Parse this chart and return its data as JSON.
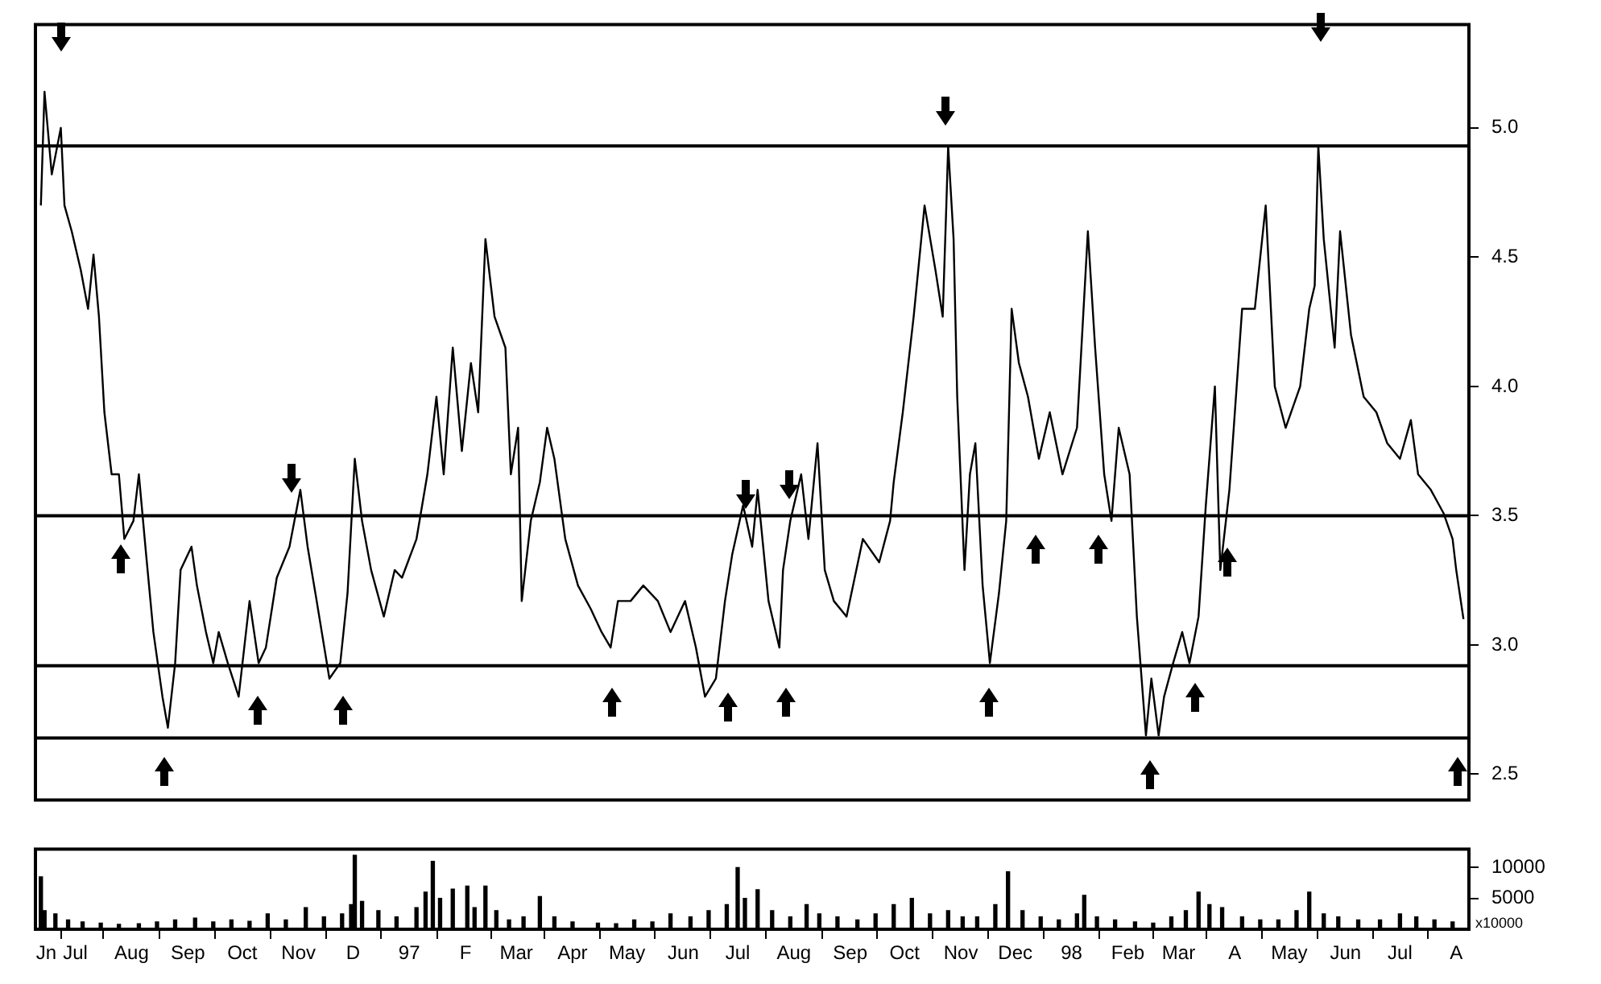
{
  "chart_data": [
    {
      "type": "line",
      "color": "#000000",
      "marker": "none",
      "grid": false,
      "legend": false,
      "tick_labels": "y",
      "x": [
        "1996-06-12",
        "1996-06-14",
        "1996-06-18",
        "1996-06-23",
        "1996-06-25",
        "1996-06-29",
        "1996-07-04",
        "1996-07-08",
        "1996-07-11",
        "1996-07-14",
        "1996-07-17",
        "1996-07-21",
        "1996-07-25",
        "1996-07-28",
        "1996-08-02",
        "1996-08-05",
        "1996-08-09",
        "1996-08-13",
        "1996-08-18",
        "1996-08-21",
        "1996-08-25",
        "1996-08-28",
        "1996-09-03",
        "1996-09-06",
        "1996-09-11",
        "1996-09-15",
        "1996-09-18",
        "1996-09-23",
        "1996-09-29",
        "1996-10-05",
        "1996-10-10",
        "1996-10-14",
        "1996-10-20",
        "1996-10-27",
        "1996-11-02",
        "1996-11-06",
        "1996-11-11",
        "1996-11-18",
        "1996-11-24",
        "1996-11-28",
        "1996-12-02",
        "1996-12-06",
        "1996-12-11",
        "1996-12-18",
        "1996-12-24",
        "1996-12-28",
        "1997-01-05",
        "1997-01-11",
        "1997-01-16",
        "1997-01-20",
        "1997-01-25",
        "1997-01-30",
        "1997-02-04",
        "1997-02-08",
        "1997-02-12",
        "1997-02-17",
        "1997-02-23",
        "1997-02-26",
        "1997-03-02",
        "1997-03-04",
        "1997-03-09",
        "1997-03-14",
        "1997-03-18",
        "1997-03-22",
        "1997-03-28",
        "1997-04-04",
        "1997-04-11",
        "1997-04-17",
        "1997-04-22",
        "1997-04-26",
        "1997-05-03",
        "1997-05-10",
        "1997-05-18",
        "1997-05-25",
        "1997-06-02",
        "1997-06-08",
        "1997-06-13",
        "1997-06-19",
        "1997-06-24",
        "1997-06-28",
        "1997-07-04",
        "1997-07-09",
        "1997-07-12",
        "1997-07-18",
        "1997-07-24",
        "1997-07-26",
        "1997-07-30",
        "1997-08-05",
        "1997-08-09",
        "1997-08-14",
        "1997-08-18",
        "1997-08-23",
        "1997-08-30",
        "1997-09-08",
        "1997-09-17",
        "1997-09-23",
        "1997-09-25",
        "1997-09-30",
        "1997-10-06",
        "1997-10-12",
        "1997-10-18",
        "1997-10-22",
        "1997-10-24",
        "1997-10-25",
        "1997-10-28",
        "1997-10-30",
        "1997-11-03",
        "1997-11-06",
        "1997-11-09",
        "1997-11-13",
        "1997-11-17",
        "1997-11-22",
        "1997-11-26",
        "1997-11-29",
        "1997-12-03",
        "1997-12-08",
        "1997-12-14",
        "1997-12-20",
        "1997-12-27",
        "1998-01-04",
        "1998-01-10",
        "1998-01-14",
        "1998-01-19",
        "1998-01-23",
        "1998-01-27",
        "1998-02-02",
        "1998-02-06",
        "1998-02-11",
        "1998-02-14",
        "1998-02-18",
        "1998-02-21",
        "1998-02-26",
        "1998-03-03",
        "1998-03-07",
        "1998-03-12",
        "1998-03-16",
        "1998-03-21",
        "1998-03-24",
        "1998-03-29",
        "1998-04-05",
        "1998-04-12",
        "1998-04-18",
        "1998-04-23",
        "1998-04-29",
        "1998-05-07",
        "1998-05-12",
        "1998-05-15",
        "1998-05-17",
        "1998-05-20",
        "1998-05-26",
        "1998-05-29",
        "1998-06-04",
        "1998-06-11",
        "1998-06-18",
        "1998-06-24",
        "1998-07-01",
        "1998-07-07",
        "1998-07-11",
        "1998-07-18",
        "1998-07-25",
        "1998-07-30",
        "1998-08-01",
        "1998-08-05"
      ],
      "values": [
        4.7,
        5.14,
        4.82,
        5.0,
        4.7,
        4.6,
        4.45,
        4.3,
        4.51,
        4.27,
        3.9,
        3.66,
        3.66,
        3.41,
        3.48,
        3.66,
        3.35,
        3.05,
        2.8,
        2.68,
        2.93,
        3.29,
        3.38,
        3.23,
        3.05,
        2.93,
        3.05,
        2.93,
        2.8,
        3.17,
        2.93,
        2.99,
        3.26,
        3.38,
        3.6,
        3.38,
        3.17,
        2.87,
        2.93,
        3.2,
        3.72,
        3.48,
        3.29,
        3.11,
        3.29,
        3.26,
        3.41,
        3.66,
        3.96,
        3.66,
        4.15,
        3.75,
        4.09,
        3.9,
        4.57,
        4.27,
        4.15,
        3.66,
        3.84,
        3.17,
        3.48,
        3.63,
        3.84,
        3.72,
        3.41,
        3.23,
        3.14,
        3.05,
        2.99,
        3.17,
        3.17,
        3.23,
        3.17,
        3.05,
        3.17,
        2.99,
        2.8,
        2.87,
        3.17,
        3.35,
        3.54,
        3.38,
        3.6,
        3.17,
        2.99,
        3.29,
        3.48,
        3.66,
        3.41,
        3.78,
        3.29,
        3.17,
        3.11,
        3.41,
        3.32,
        3.48,
        3.63,
        3.9,
        4.27,
        4.7,
        4.45,
        4.27,
        4.7,
        4.93,
        4.57,
        3.96,
        3.29,
        3.66,
        3.78,
        3.23,
        2.93,
        3.2,
        3.48,
        4.3,
        4.09,
        3.96,
        3.72,
        3.9,
        3.66,
        3.84,
        4.6,
        4.15,
        3.66,
        3.48,
        3.84,
        3.66,
        3.11,
        2.65,
        2.87,
        2.65,
        2.8,
        2.93,
        3.05,
        2.93,
        3.11,
        3.54,
        4.0,
        3.29,
        3.6,
        4.3,
        4.3,
        4.7,
        4.0,
        3.84,
        4.0,
        4.3,
        4.39,
        4.93,
        4.57,
        4.15,
        4.6,
        4.2,
        3.96,
        3.9,
        3.78,
        3.72,
        3.87,
        3.66,
        3.6,
        3.51,
        3.41,
        3.29,
        3.1
      ],
      "xlim": [
        "1996-06-09",
        "1998-08-08"
      ],
      "ylim": [
        2.4,
        5.4
      ],
      "yticks": [
        2.5,
        {
          "value": 3,
          "label": "3.0"
        },
        3.5,
        {
          "value": 4,
          "label": "4.0"
        },
        4.5,
        {
          "value": 5,
          "label": "5.0"
        }
      ],
      "ref_lines": [
        {
          "axis": "y",
          "value": 4.93,
          "color": "#000000"
        },
        {
          "axis": "y",
          "value": 3.5,
          "color": "#000000"
        },
        {
          "axis": "y",
          "value": 2.92,
          "color": "#000000"
        },
        {
          "axis": "y",
          "value": 2.64,
          "color": "#000000"
        }
      ]
    },
    {
      "type": "bar",
      "color": "#000000",
      "grid": false,
      "legend": false,
      "x": [
        "1996-06-12",
        "1996-06-14",
        "1996-06-20",
        "1996-06-27",
        "1996-07-05",
        "1996-07-15",
        "1996-07-25",
        "1996-08-05",
        "1996-08-15",
        "1996-08-25",
        "1996-09-05",
        "1996-09-15",
        "1996-09-25",
        "1996-10-05",
        "1996-10-15",
        "1996-10-25",
        "1996-11-05",
        "1996-11-15",
        "1996-11-25",
        "1996-11-30",
        "1996-12-02",
        "1996-12-06",
        "1996-12-15",
        "1996-12-25",
        "1997-01-05",
        "1997-01-10",
        "1997-01-14",
        "1997-01-18",
        "1997-01-25",
        "1997-02-02",
        "1997-02-06",
        "1997-02-12",
        "1997-02-18",
        "1997-02-25",
        "1997-03-05",
        "1997-03-14",
        "1997-03-22",
        "1997-04-01",
        "1997-04-15",
        "1997-04-25",
        "1997-05-05",
        "1997-05-15",
        "1997-05-25",
        "1997-06-05",
        "1997-06-15",
        "1997-06-25",
        "1997-07-01",
        "1997-07-05",
        "1997-07-12",
        "1997-07-20",
        "1997-07-30",
        "1997-08-08",
        "1997-08-15",
        "1997-08-25",
        "1997-09-05",
        "1997-09-15",
        "1997-09-25",
        "1997-10-05",
        "1997-10-15",
        "1997-10-25",
        "1997-11-02",
        "1997-11-10",
        "1997-11-20",
        "1997-11-27",
        "1997-12-05",
        "1997-12-15",
        "1997-12-25",
        "1998-01-04",
        "1998-01-08",
        "1998-01-15",
        "1998-01-25",
        "1998-02-05",
        "1998-02-15",
        "1998-02-25",
        "1998-03-05",
        "1998-03-12",
        "1998-03-18",
        "1998-03-25",
        "1998-04-05",
        "1998-04-15",
        "1998-04-25",
        "1998-05-05",
        "1998-05-12",
        "1998-05-20",
        "1998-05-28",
        "1998-06-08",
        "1998-06-20",
        "1998-07-01",
        "1998-07-10",
        "1998-07-20",
        "1998-07-30"
      ],
      "values": [
        8500,
        3000,
        2500,
        1500,
        1200,
        1000,
        800,
        900,
        1200,
        1500,
        1800,
        1200,
        1500,
        1300,
        2500,
        1500,
        3500,
        2000,
        2500,
        4000,
        12000,
        4500,
        3000,
        2000,
        3500,
        6000,
        11000,
        5000,
        6500,
        7000,
        3500,
        7000,
        3000,
        1500,
        2000,
        5300,
        2000,
        1200,
        1000,
        900,
        1500,
        1200,
        2500,
        2000,
        3000,
        4000,
        10000,
        5000,
        6400,
        3000,
        2000,
        4000,
        2500,
        2000,
        1500,
        2500,
        4000,
        5000,
        2500,
        3000,
        2000,
        2000,
        4000,
        9300,
        3000,
        2000,
        1500,
        2500,
        5500,
        2000,
        1500,
        1200,
        1000,
        2000,
        3000,
        6000,
        4000,
        3500,
        2000,
        1500,
        1500,
        3000,
        6000,
        2500,
        2000,
        1500,
        1500,
        2500,
        2000,
        1500,
        1200
      ],
      "xlim": [
        "1996-06-09",
        "1998-08-08"
      ],
      "xticks": [
        {
          "value": "1996-06-15",
          "label": "Jn"
        },
        {
          "value": "1996-07-01",
          "label": "Jul"
        },
        {
          "value": "1996-08-01",
          "label": "Aug"
        },
        {
          "value": "1996-09-01",
          "label": "Sep"
        },
        {
          "value": "1996-10-01",
          "label": "Oct"
        },
        {
          "value": "1996-11-01",
          "label": "Nov"
        },
        {
          "value": "1996-12-01",
          "label": "D"
        },
        {
          "value": "1997-01-01",
          "label": "97"
        },
        {
          "value": "1997-02-01",
          "label": "F"
        },
        {
          "value": "1997-03-01",
          "label": "Mar"
        },
        {
          "value": "1997-04-01",
          "label": "Apr"
        },
        {
          "value": "1997-05-01",
          "label": "May"
        },
        {
          "value": "1997-06-01",
          "label": "Jun"
        },
        {
          "value": "1997-07-01",
          "label": "Jul"
        },
        {
          "value": "1997-08-01",
          "label": "Aug"
        },
        {
          "value": "1997-09-01",
          "label": "Sep"
        },
        {
          "value": "1997-10-01",
          "label": "Oct"
        },
        {
          "value": "1997-11-01",
          "label": "Nov"
        },
        {
          "value": "1997-12-01",
          "label": "Dec"
        },
        {
          "value": "1998-01-01",
          "label": "98"
        },
        {
          "value": "1998-02-01",
          "label": "Feb"
        },
        {
          "value": "1998-03-01",
          "label": "Mar"
        },
        {
          "value": "1998-04-01",
          "label": "A"
        },
        {
          "value": "1998-05-01",
          "label": "May"
        },
        {
          "value": "1998-06-01",
          "label": "Jun"
        },
        {
          "value": "1998-07-01",
          "label": "Jul"
        },
        {
          "value": "1998-08-01",
          "label": "A"
        }
      ],
      "ylim": [
        0,
        13000
      ],
      "yticks": [
        5000,
        10000
      ],
      "annotations": [
        "x10000"
      ]
    }
  ]
}
